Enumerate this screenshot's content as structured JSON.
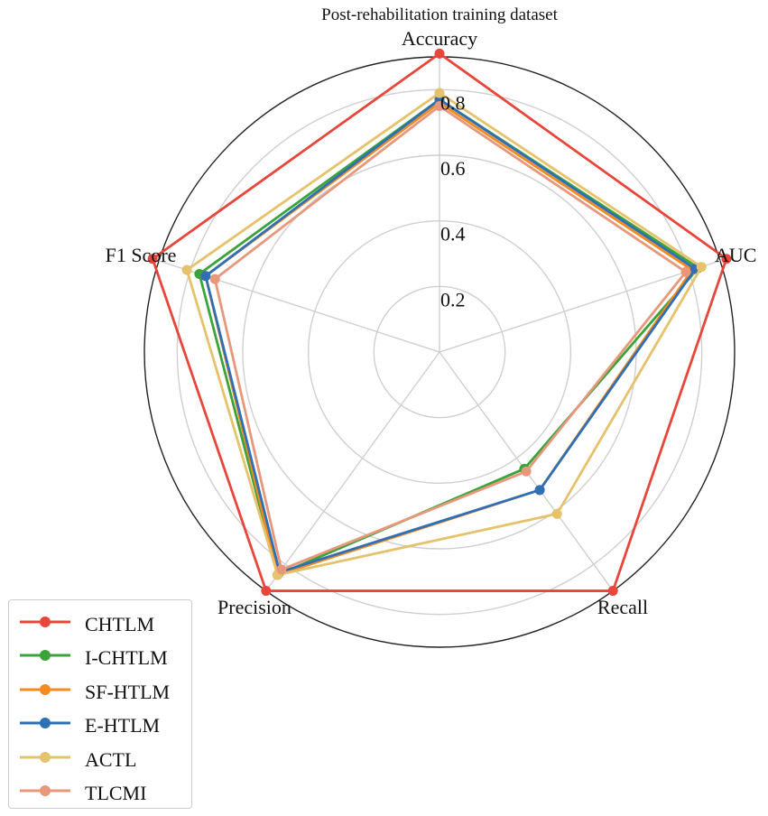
{
  "chart_data": {
    "type": "radar",
    "title": "Post-rehabilitation training dataset",
    "axes": [
      "Accuracy",
      "AUC",
      "Recall",
      "Precision",
      "F1 Score"
    ],
    "radial_ticks": [
      "0.2",
      "0.4",
      "0.6",
      "0.8"
    ],
    "rlim": [
      0,
      0.9
    ],
    "grid": true,
    "legend_position": "bottom-left",
    "series": [
      {
        "name": "CHTLM",
        "color": "#e8463a",
        "values": [
          0.91,
          0.92,
          0.9,
          0.9,
          0.92
        ]
      },
      {
        "name": "I-CHTLM",
        "color": "#3aa33a",
        "values": [
          0.77,
          0.83,
          0.44,
          0.84,
          0.77
        ]
      },
      {
        "name": "SF-HTLM",
        "color": "#f58a1f",
        "values": [
          0.76,
          0.81,
          0.52,
          0.84,
          0.75
        ]
      },
      {
        "name": "E-HTLM",
        "color": "#2e6fb5",
        "values": [
          0.77,
          0.82,
          0.52,
          0.83,
          0.75
        ]
      },
      {
        "name": "ACTL",
        "color": "#e5c26b",
        "values": [
          0.79,
          0.84,
          0.61,
          0.84,
          0.81
        ]
      },
      {
        "name": "TLCMI",
        "color": "#e8987a",
        "values": [
          0.75,
          0.79,
          0.45,
          0.82,
          0.72
        ]
      }
    ]
  }
}
